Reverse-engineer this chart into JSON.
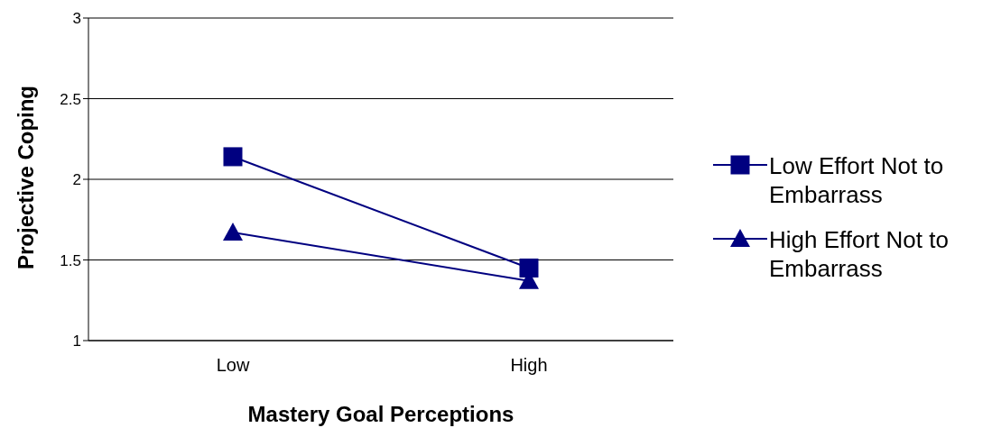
{
  "chart_data": {
    "type": "line",
    "xlabel": "Mastery Goal Perceptions",
    "ylabel": "Projective Coping",
    "categories": [
      "Low",
      "High"
    ],
    "series": [
      {
        "name": "Low Effort Not to Embarrass",
        "color": "#000080",
        "marker": "square",
        "values": [
          2.14,
          1.45
        ]
      },
      {
        "name": "High Effort Not to Embarrass",
        "color": "#000080",
        "marker": "triangle",
        "values": [
          1.67,
          1.37
        ]
      }
    ],
    "ylim": [
      1,
      3
    ],
    "yticks": [
      1,
      1.5,
      2,
      2.5,
      3
    ],
    "grid": "y",
    "legend": "right"
  }
}
